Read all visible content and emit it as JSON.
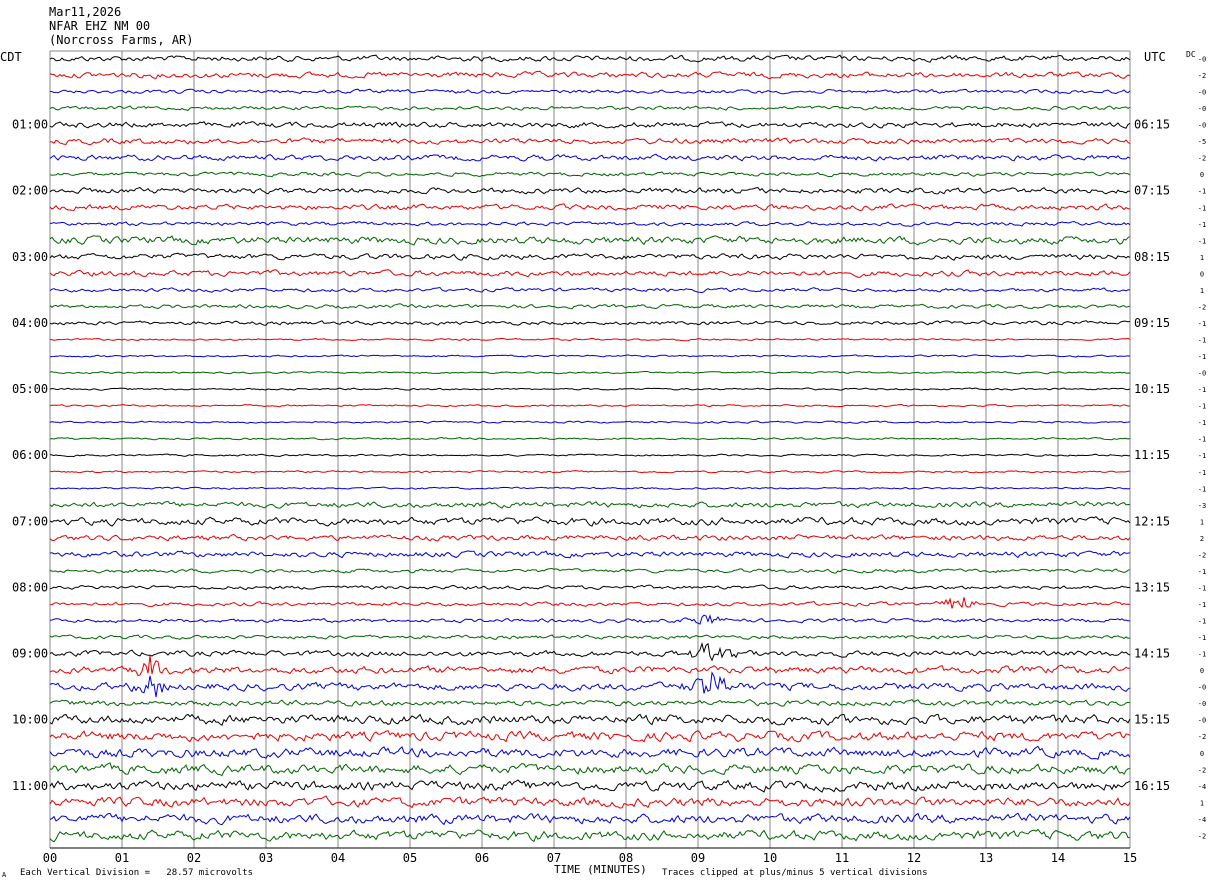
{
  "header": {
    "date": "Mar11,2026",
    "station": "NFAR EHZ NM 00",
    "location": "(Norcross Farms, AR)"
  },
  "footer": {
    "scale": "Each Vertical Division =   28.57 microvolts",
    "clip_note": "Traces clipped at plus/minus 5 vertical divisions",
    "corner_mark": "A"
  },
  "chart_data": {
    "type": "line",
    "title": "",
    "xlabel": "TIME (MINUTES)",
    "ylabel": "",
    "left_axis_label": "CDT",
    "right_axis_label": "UTC",
    "dc_label": "DC",
    "x_ticks": [
      "00",
      "01",
      "02",
      "03",
      "04",
      "05",
      "06",
      "07",
      "08",
      "09",
      "10",
      "11",
      "12",
      "13",
      "14",
      "15"
    ],
    "xlim": [
      0,
      15
    ],
    "grid": true,
    "left_time_labels": [
      "01:00",
      "02:00",
      "03:00",
      "04:00",
      "05:00",
      "06:00",
      "07:00",
      "08:00",
      "09:00",
      "10:00",
      "11:00"
    ],
    "right_time_labels": [
      "06:15",
      "07:15",
      "08:15",
      "09:15",
      "10:15",
      "11:15",
      "12:15",
      "13:15",
      "14:15",
      "15:15",
      "16:15"
    ],
    "trace_colors": [
      "#000000",
      "#e00000",
      "#0000d0",
      "#006400"
    ],
    "trace_count": 48,
    "dc_offsets": [
      "-0",
      "-2",
      "-0",
      "-0",
      "-0",
      "-5",
      "-2",
      "0",
      "-1",
      "-1",
      "-1",
      "-1",
      "1",
      "0",
      "1",
      "-2",
      "-1",
      "-1",
      "-1",
      "-0",
      "-1",
      "-1",
      "-1",
      "-1",
      "-1",
      "-1",
      "-1",
      "-3",
      "1",
      "2",
      "-2",
      "-1",
      "-1",
      "-1",
      "-1",
      "-1",
      "-1",
      "0",
      "-0",
      "-0",
      "-0",
      "-2",
      "0",
      "-2",
      "-4",
      "1",
      "-4",
      "-2"
    ],
    "trace_activity": [
      3,
      3,
      2,
      2,
      3,
      3,
      3,
      2,
      3,
      3,
      2,
      4,
      3,
      3,
      2,
      2,
      2,
      1,
      1,
      1,
      1,
      1,
      1,
      1,
      1,
      1,
      1,
      3,
      4,
      3,
      3,
      2,
      2,
      2,
      2,
      2,
      3,
      4,
      4,
      3,
      5,
      5,
      5,
      5,
      5,
      5,
      5,
      5
    ],
    "events": [
      {
        "trace": 36,
        "minute": 9.15,
        "amplitude": 30
      },
      {
        "trace": 37,
        "minute": 1.4,
        "amplitude": 35
      },
      {
        "trace": 38,
        "minute": 1.4,
        "amplitude": 25
      },
      {
        "trace": 38,
        "minute": 9.15,
        "amplitude": 40
      },
      {
        "trace": 33,
        "minute": 12.6,
        "amplitude": 20
      },
      {
        "trace": 34,
        "minute": 9.1,
        "amplitude": 15
      }
    ]
  }
}
